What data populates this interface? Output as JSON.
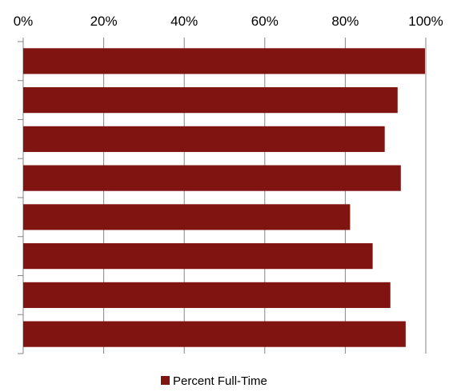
{
  "chart_data": {
    "type": "bar",
    "orientation": "horizontal",
    "x_axis_position": "top",
    "xlim": [
      0,
      100
    ],
    "x_ticks": [
      "0%",
      "20%",
      "40%",
      "60%",
      "80%",
      "100%"
    ],
    "grid": true,
    "categories": [
      "",
      "",
      "",
      "",
      "",
      "",
      "",
      ""
    ],
    "series": [
      {
        "name": "Percent Full-Time",
        "color": "#7f1410",
        "values": [
          99.8,
          93,
          89.8,
          93.8,
          81.2,
          86.8,
          91.2,
          95
        ]
      }
    ],
    "legend": {
      "position": "bottom",
      "label": "Percent Full-Time"
    }
  }
}
